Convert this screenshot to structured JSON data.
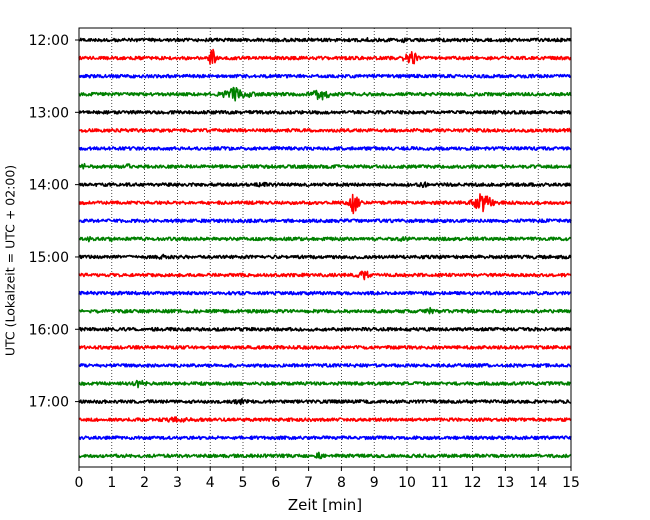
{
  "chart_data": {
    "type": "line",
    "title": "",
    "xlabel": "Zeit  [min]",
    "ylabel": "UTC (Lokalzeit = UTC + 02:00)",
    "xlim": [
      0,
      15
    ],
    "x_ticks": [
      0,
      1,
      2,
      3,
      4,
      5,
      6,
      7,
      8,
      9,
      10,
      11,
      12,
      13,
      14,
      15
    ],
    "y_ticks": [
      "12:00",
      "13:00",
      "14:00",
      "15:00",
      "16:00",
      "17:00"
    ],
    "grid": "vertical dotted",
    "trace_colors": [
      "#000000",
      "#ff0000",
      "#0000ff",
      "#008000"
    ],
    "traces": [
      {
        "start": "12:00",
        "events": [
          {
            "x": 3.8,
            "amp": 0.6,
            "width": 0.05
          },
          {
            "x": 8.8,
            "amp": 0.6,
            "width": 0.05
          },
          {
            "x": 9.9,
            "amp": 1.2,
            "width": 0.05
          }
        ]
      },
      {
        "start": "12:15",
        "events": [
          {
            "x": 4.05,
            "amp": 5.0,
            "width": 0.1
          },
          {
            "x": 10.0,
            "amp": 2.0,
            "width": 0.15
          },
          {
            "x": 10.2,
            "amp": 3.0,
            "width": 0.1
          }
        ]
      },
      {
        "start": "12:30",
        "events": []
      },
      {
        "start": "12:45",
        "events": [
          {
            "x": 4.8,
            "amp": 3.5,
            "width": 0.35
          },
          {
            "x": 7.4,
            "amp": 3.0,
            "width": 0.25
          }
        ]
      },
      {
        "start": "13:00",
        "events": []
      },
      {
        "start": "13:15",
        "events": [
          {
            "x": 14.95,
            "amp": 1.5,
            "width": 0.05
          }
        ]
      },
      {
        "start": "13:30",
        "events": []
      },
      {
        "start": "13:45",
        "events": [
          {
            "x": 0.15,
            "amp": 1.2,
            "width": 0.05
          },
          {
            "x": 1.5,
            "amp": 1.2,
            "width": 0.05
          }
        ]
      },
      {
        "start": "14:00",
        "events": [
          {
            "x": 5.6,
            "amp": 1.0,
            "width": 0.1
          },
          {
            "x": 10.5,
            "amp": 1.0,
            "width": 0.1
          },
          {
            "x": 13.5,
            "amp": 1.0,
            "width": 0.1
          }
        ]
      },
      {
        "start": "14:15",
        "events": [
          {
            "x": 8.4,
            "amp": 7.0,
            "width": 0.12
          },
          {
            "x": 12.3,
            "amp": 5.0,
            "width": 0.25
          }
        ]
      },
      {
        "start": "14:30",
        "events": []
      },
      {
        "start": "14:45",
        "events": [
          {
            "x": 0.3,
            "amp": 1.0,
            "width": 0.05
          },
          {
            "x": 1.0,
            "amp": 1.0,
            "width": 0.05
          },
          {
            "x": 9.9,
            "amp": 1.0,
            "width": 0.1
          }
        ]
      },
      {
        "start": "15:00",
        "events": [
          {
            "x": 2.5,
            "amp": 1.0,
            "width": 0.1
          }
        ]
      },
      {
        "start": "15:15",
        "events": [
          {
            "x": 8.7,
            "amp": 2.0,
            "width": 0.15
          }
        ]
      },
      {
        "start": "15:30",
        "events": []
      },
      {
        "start": "15:45",
        "events": [
          {
            "x": 10.7,
            "amp": 1.2,
            "width": 0.1
          }
        ]
      },
      {
        "start": "16:00",
        "events": []
      },
      {
        "start": "16:15",
        "events": []
      },
      {
        "start": "16:30",
        "events": []
      },
      {
        "start": "16:45",
        "events": [
          {
            "x": 1.8,
            "amp": 1.5,
            "width": 0.2
          }
        ]
      },
      {
        "start": "17:00",
        "events": [
          {
            "x": 4.9,
            "amp": 1.5,
            "width": 0.1
          }
        ]
      },
      {
        "start": "17:15",
        "events": [
          {
            "x": 3.0,
            "amp": 1.0,
            "width": 0.3
          }
        ]
      },
      {
        "start": "17:30",
        "events": []
      },
      {
        "start": "17:45",
        "events": [
          {
            "x": 7.3,
            "amp": 1.2,
            "width": 0.1
          }
        ]
      }
    ]
  }
}
